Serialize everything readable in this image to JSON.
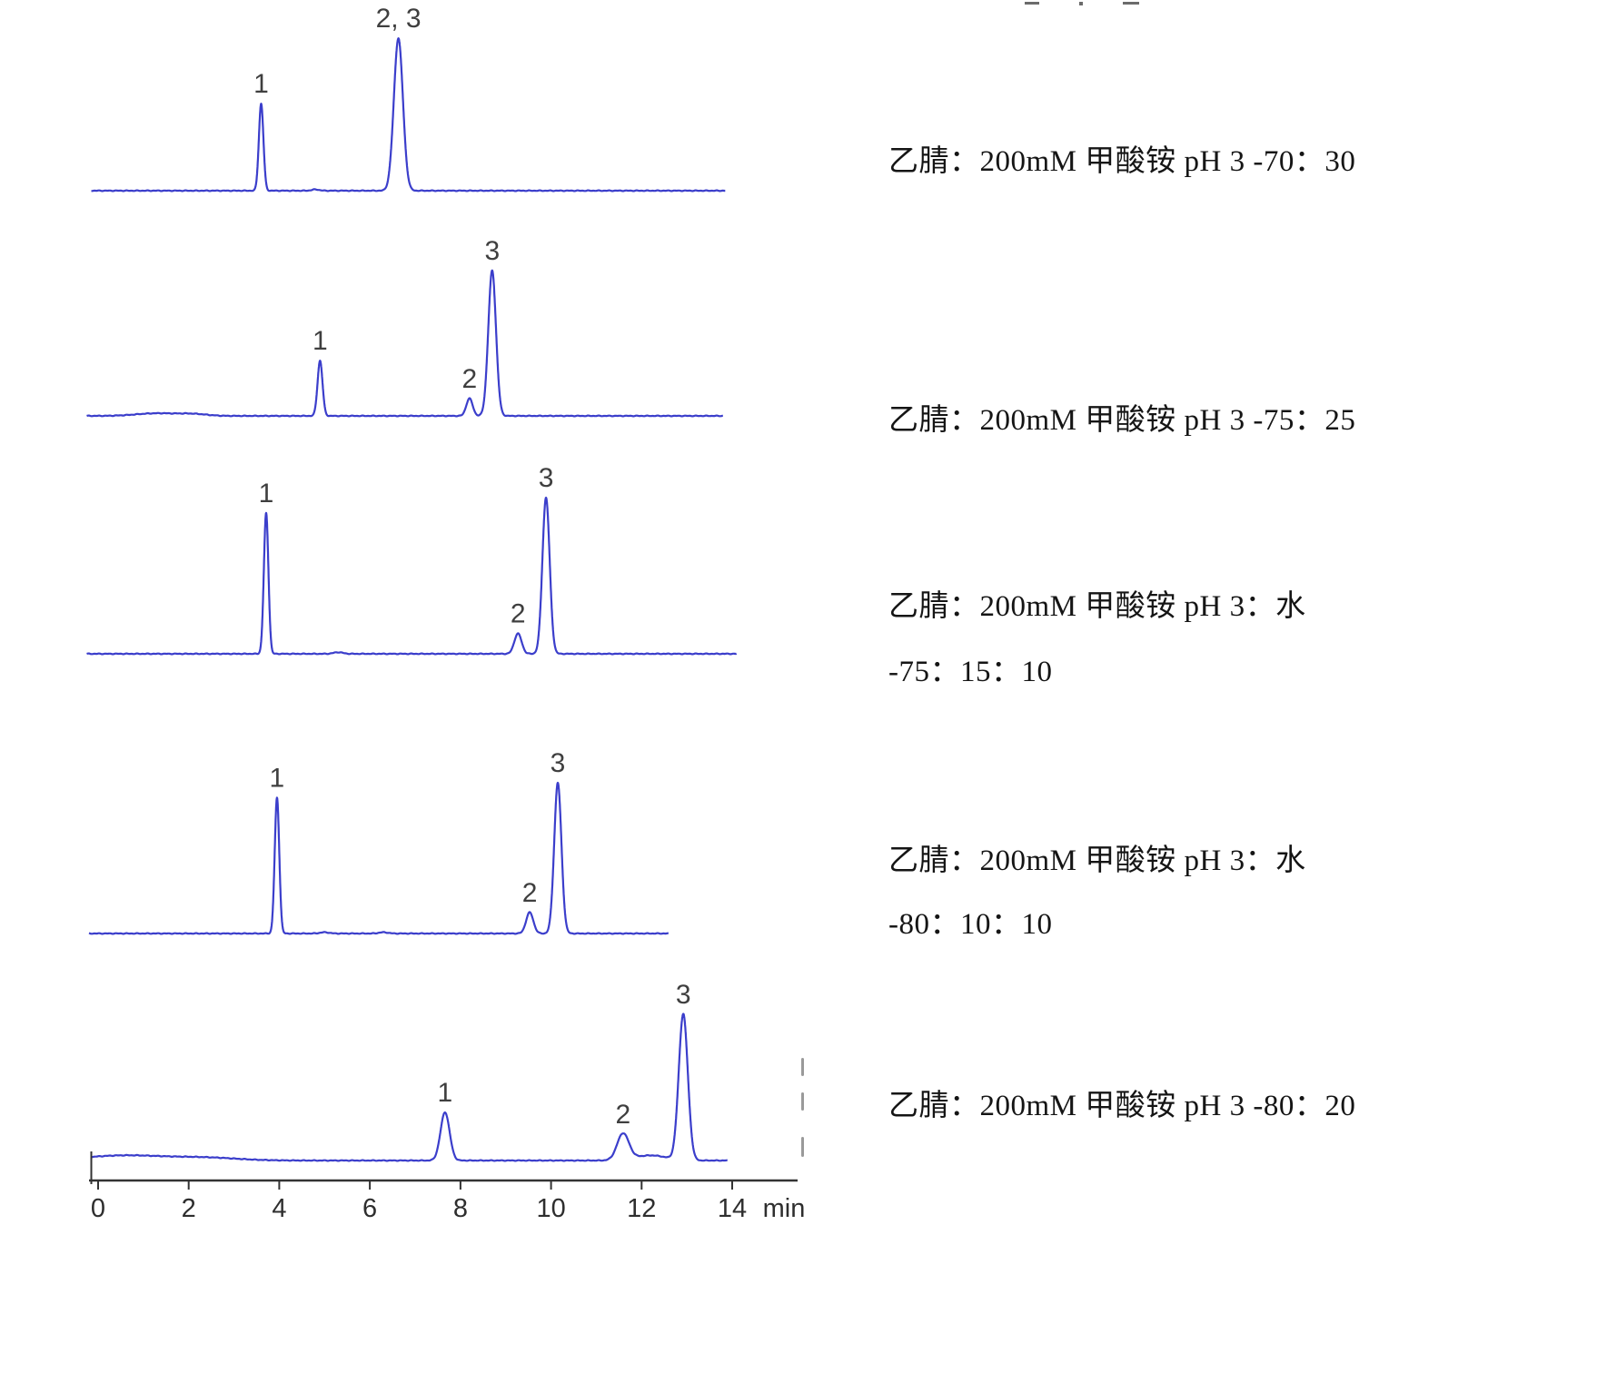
{
  "style": {
    "background": "#ffffff",
    "trace_color": "#3b3ecb",
    "axis_color": "#333333",
    "peak_label_color": "#3f3f3f",
    "text_color": "#151515"
  },
  "conditions": [
    {
      "lines": [
        "乙腈：200mM 甲酸铵 pH 3 -70：30"
      ]
    },
    {
      "lines": [
        "乙腈：200mM 甲酸铵 pH 3 -75：25"
      ]
    },
    {
      "lines": [
        "乙腈：200mM 甲酸铵 pH 3：水",
        "-75：15：10"
      ]
    },
    {
      "lines": [
        "乙腈：200mM 甲酸铵 pH 3：水",
        "-80：10：10"
      ]
    },
    {
      "lines": [
        "乙腈：200mM 甲酸铵 pH 3 -80：20"
      ]
    }
  ],
  "chart_data": [
    {
      "type": "line",
      "title": "",
      "condition": "乙腈：200mM 甲酸铵 pH 3 -70：30",
      "x_unit": "min",
      "x_range": [
        -0.15,
        13.85
      ],
      "peaks": [
        {
          "label": "1",
          "t": 3.6,
          "height": 0.57,
          "sigma": 0.05
        },
        {
          "label": "2, 3",
          "t": 6.63,
          "height": 1.0,
          "sigma": 0.1
        }
      ],
      "baseline_bumps": [
        {
          "t": 4.8,
          "height": 0.008,
          "sigma": 0.08
        }
      ]
    },
    {
      "type": "line",
      "title": "",
      "condition": "乙腈：200mM 甲酸铵 pH 3 -75：25",
      "x_unit": "min",
      "x_range": [
        -0.25,
        13.8
      ],
      "peaks": [
        {
          "label": "1",
          "t": 4.9,
          "height": 0.38,
          "sigma": 0.055
        },
        {
          "label": "2",
          "t": 8.2,
          "height": 0.12,
          "sigma": 0.07
        },
        {
          "label": "3",
          "t": 8.7,
          "height": 1.0,
          "sigma": 0.085
        }
      ],
      "baseline_bumps": [
        {
          "t": 1.3,
          "height": 0.018,
          "sigma": 0.45
        },
        {
          "t": 2.1,
          "height": 0.012,
          "sigma": 0.3
        }
      ]
    },
    {
      "type": "line",
      "title": "",
      "condition": "乙腈：200mM 甲酸铵 pH 3：水 -75：15：10",
      "x_unit": "min",
      "x_range": [
        -0.25,
        14.1
      ],
      "peaks": [
        {
          "label": "1",
          "t": 3.71,
          "height": 0.9,
          "sigma": 0.05
        },
        {
          "label": "2",
          "t": 9.27,
          "height": 0.13,
          "sigma": 0.08
        },
        {
          "label": "3",
          "t": 9.89,
          "height": 1.0,
          "sigma": 0.08
        }
      ],
      "baseline_bumps": [
        {
          "t": 5.3,
          "height": 0.01,
          "sigma": 0.1
        }
      ]
    },
    {
      "type": "line",
      "title": "",
      "condition": "乙腈：200mM 甲酸铵 pH 3：水 -80：10：10",
      "x_unit": "min",
      "x_range": [
        -0.2,
        12.6
      ],
      "peaks": [
        {
          "label": "1",
          "t": 3.95,
          "height": 0.9,
          "sigma": 0.05
        },
        {
          "label": "2",
          "t": 9.53,
          "height": 0.14,
          "sigma": 0.08
        },
        {
          "label": "3",
          "t": 10.15,
          "height": 1.0,
          "sigma": 0.08
        }
      ],
      "baseline_bumps": [
        {
          "t": 5.0,
          "height": 0.008,
          "sigma": 0.1
        },
        {
          "t": 6.3,
          "height": 0.008,
          "sigma": 0.1
        }
      ]
    },
    {
      "type": "line",
      "title": "",
      "condition": "乙腈：200mM 甲酸铵 pH 3 -80：20",
      "x_unit": "min",
      "x_range": [
        -0.15,
        13.9
      ],
      "peaks": [
        {
          "label": "1",
          "t": 7.66,
          "height": 0.33,
          "sigma": 0.1
        },
        {
          "label": "2",
          "t": 11.59,
          "height": 0.18,
          "sigma": 0.13
        },
        {
          "label": "3",
          "t": 12.92,
          "height": 1.0,
          "sigma": 0.1
        }
      ],
      "baseline_bumps": [
        {
          "t": 0.6,
          "height": 0.035,
          "sigma": 0.9
        },
        {
          "t": 2.4,
          "height": 0.018,
          "sigma": 0.7
        },
        {
          "t": 12.2,
          "height": 0.035,
          "sigma": 0.35
        }
      ],
      "axis": {
        "ticks": [
          0,
          2,
          4,
          6,
          8,
          10,
          12,
          14
        ],
        "unit": "min"
      }
    }
  ]
}
